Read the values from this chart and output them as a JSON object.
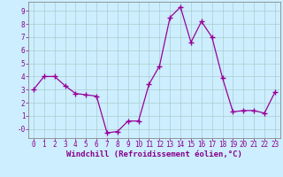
{
  "x": [
    0,
    1,
    2,
    3,
    4,
    5,
    6,
    7,
    8,
    9,
    10,
    11,
    12,
    13,
    14,
    15,
    16,
    17,
    18,
    19,
    20,
    21,
    22,
    23
  ],
  "y": [
    3.0,
    4.0,
    4.0,
    3.3,
    2.7,
    2.6,
    2.5,
    -0.3,
    -0.2,
    0.6,
    0.6,
    3.4,
    4.8,
    8.5,
    9.3,
    6.6,
    8.2,
    7.0,
    3.9,
    1.3,
    1.4,
    1.4,
    1.2,
    2.8
  ],
  "line_color": "#990099",
  "marker": "+",
  "marker_size": 4,
  "background_color": "#cceeff",
  "grid_color": "#aacccc",
  "xlabel": "Windchill (Refroidissement éolien,°C)",
  "xlabel_fontsize": 6.5,
  "ylim": [
    -0.7,
    9.7
  ],
  "xlim": [
    -0.5,
    23.5
  ],
  "ytick_labels": [
    "9",
    "8",
    "7",
    "6",
    "5",
    "4",
    "3",
    "2",
    "1",
    "-0"
  ],
  "ytick_values": [
    9,
    8,
    7,
    6,
    5,
    4,
    3,
    2,
    1,
    0
  ],
  "xticks": [
    0,
    1,
    2,
    3,
    4,
    5,
    6,
    7,
    8,
    9,
    10,
    11,
    12,
    13,
    14,
    15,
    16,
    17,
    18,
    19,
    20,
    21,
    22,
    23
  ],
  "tick_color": "#880088",
  "tick_fontsize": 5.5,
  "spine_color": "#888888",
  "label_color": "#880088"
}
